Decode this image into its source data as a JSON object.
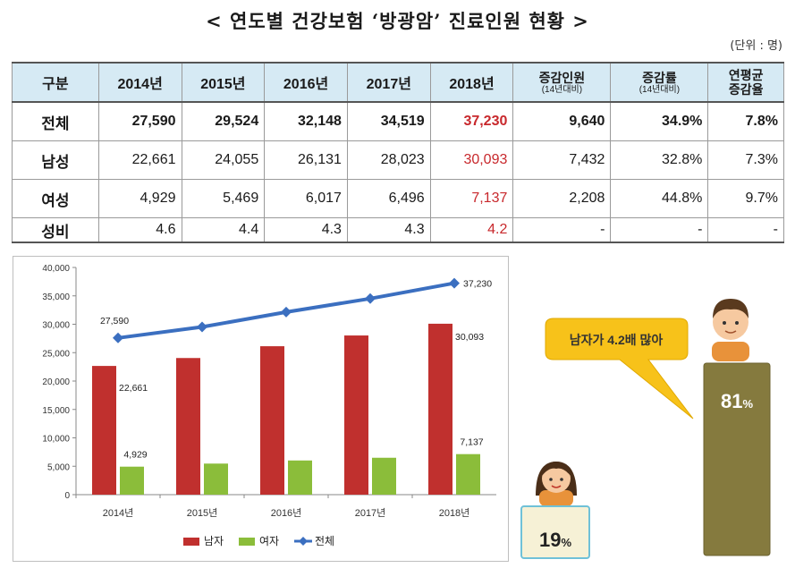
{
  "title": "< 연도별 건강보험 ‘방광암’ 진료인원 현황 >",
  "unit": "(단위 : 명)",
  "table": {
    "headers": [
      {
        "main": "구분",
        "sub": ""
      },
      {
        "main": "2014년",
        "sub": ""
      },
      {
        "main": "2015년",
        "sub": ""
      },
      {
        "main": "2016년",
        "sub": ""
      },
      {
        "main": "2017년",
        "sub": ""
      },
      {
        "main": "2018년",
        "sub": ""
      },
      {
        "main": "증감인원",
        "sub": "(14년대비)"
      },
      {
        "main": "증감률",
        "sub": "(14년대비)"
      },
      {
        "main": "연평균",
        "sub": "증감율"
      }
    ],
    "rows": [
      {
        "label": "전체",
        "cells": [
          "27,590",
          "29,524",
          "32,148",
          "34,519",
          "37,230",
          "9,640",
          "34.9%",
          "7.8%"
        ]
      },
      {
        "label": "남성",
        "cells": [
          "22,661",
          "24,055",
          "26,131",
          "28,023",
          "30,093",
          "7,432",
          "32.8%",
          "7.3%"
        ]
      },
      {
        "label": "여성",
        "cells": [
          "4,929",
          "5,469",
          "6,017",
          "6,496",
          "7,137",
          "2,208",
          "44.8%",
          "9.7%"
        ]
      },
      {
        "label": "성비",
        "cells": [
          "4.6",
          "4.4",
          "4.3",
          "4.3",
          "4.2",
          "-",
          "-",
          "-"
        ]
      }
    ]
  },
  "chart_data": {
    "type": "bar",
    "categories": [
      "2014년",
      "2015년",
      "2016년",
      "2017년",
      "2018년"
    ],
    "series": [
      {
        "name": "남자",
        "type": "bar",
        "color": "#c0302e",
        "values": [
          22661,
          24055,
          26131,
          28023,
          30093
        ]
      },
      {
        "name": "여자",
        "type": "bar",
        "color": "#8bbd3a",
        "values": [
          4929,
          5469,
          6017,
          6496,
          7137
        ]
      },
      {
        "name": "전체",
        "type": "line",
        "color": "#3b6fc0",
        "values": [
          27590,
          29524,
          32148,
          34519,
          37230
        ]
      }
    ],
    "data_labels": [
      {
        "series": "전체",
        "index": 0,
        "text": "27,590"
      },
      {
        "series": "전체",
        "index": 4,
        "text": "37,230"
      },
      {
        "series": "남자",
        "index": 0,
        "text": "22,661"
      },
      {
        "series": "남자",
        "index": 4,
        "text": "30,093"
      },
      {
        "series": "여자",
        "index": 0,
        "text": "4,929"
      },
      {
        "series": "여자",
        "index": 4,
        "text": "7,137"
      }
    ],
    "yticks": [
      "0",
      "5,000",
      "10,000",
      "15,000",
      "20,000",
      "25,000",
      "30,000",
      "35,000",
      "40,000"
    ],
    "ylim": [
      0,
      40000
    ],
    "grid": false,
    "legend": "bottom"
  },
  "infographic": {
    "callout": "남자가 4.2배 많아",
    "female_pct": "19",
    "male_pct": "81",
    "pct_sign": "%",
    "female_color": "#f6f1d6",
    "male_color": "#857a3e"
  }
}
